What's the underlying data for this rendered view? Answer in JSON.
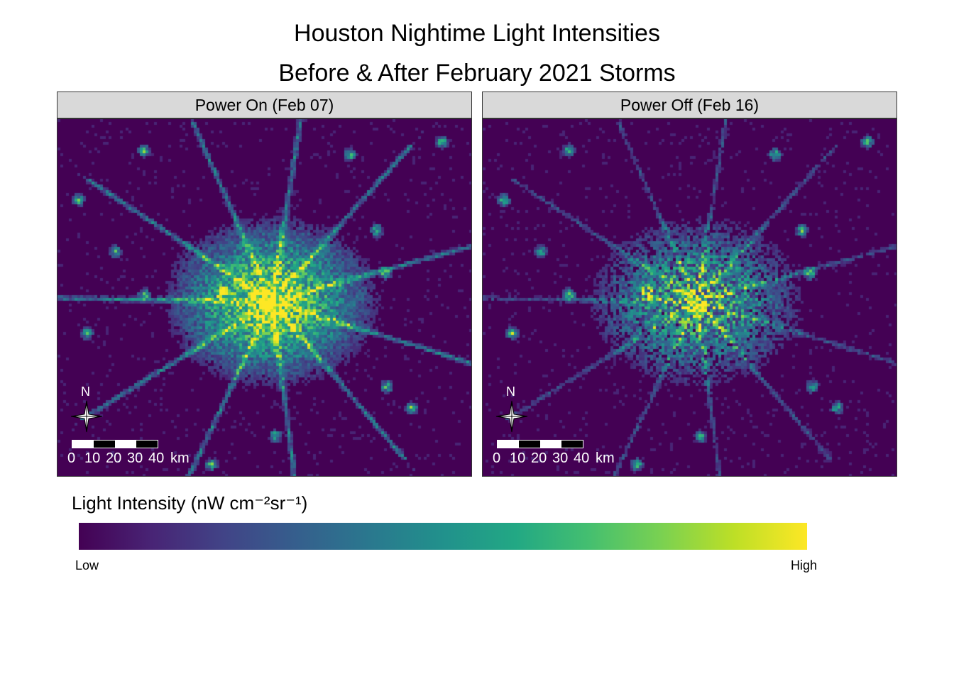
{
  "title": {
    "line1": "Houston Nightime Light Intensities",
    "line2": "Before & After February 2021 Storms"
  },
  "panels": [
    {
      "label": "Power On (Feb 07)",
      "state": "on"
    },
    {
      "label": "Power Off (Feb 16)",
      "state": "off"
    }
  ],
  "map_elements": {
    "north_label": "N",
    "scale_ticks": [
      "0",
      "10",
      "20",
      "30",
      "40"
    ],
    "scale_unit": "km"
  },
  "legend": {
    "title": "Light Intensity (nW cm⁻²sr⁻¹)",
    "low_label": "Low",
    "high_label": "High",
    "palette": [
      "#440154",
      "#482475",
      "#414487",
      "#355f8d",
      "#2a788e",
      "#21918c",
      "#22a884",
      "#44bf70",
      "#7ad151",
      "#bddf26",
      "#fde725"
    ]
  }
}
